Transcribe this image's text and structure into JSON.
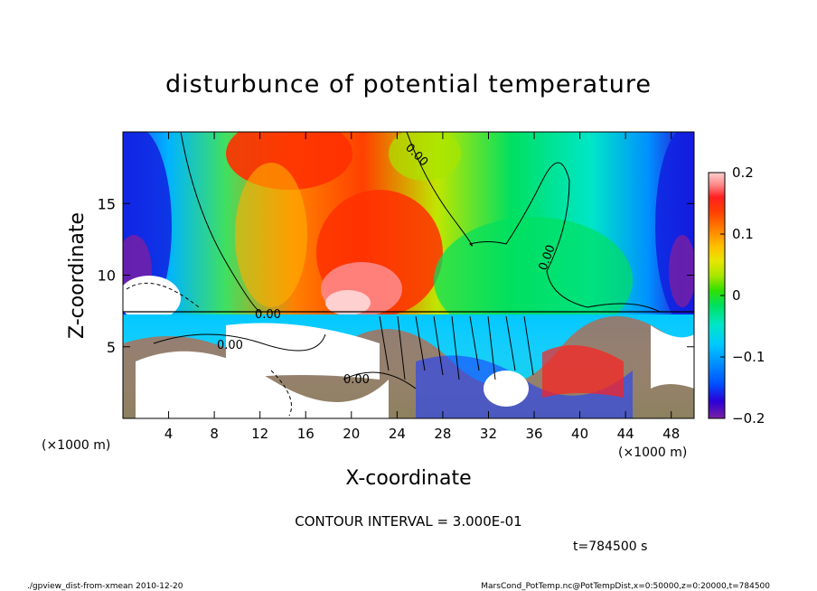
{
  "chart_data": {
    "type": "heatmap",
    "title": "disturbunce of potential temperature",
    "xlabel": "X-coordinate",
    "ylabel": "Z-coordinate",
    "x_unit": "(×1000 m)",
    "x_unit_right": "(×1000 m)",
    "xlim": [
      0,
      50
    ],
    "ylim": [
      0,
      20
    ],
    "x_ticks": [
      4,
      8,
      12,
      16,
      20,
      24,
      28,
      32,
      36,
      40,
      44,
      48
    ],
    "y_ticks": [
      5,
      10,
      15
    ],
    "colorbar": {
      "min": -0.2,
      "max": 0.2,
      "tick_labels": [
        "0.2",
        "0.1",
        "0",
        "−0.1",
        "−0.2"
      ],
      "tick_values": [
        0.2,
        0.1,
        0,
        -0.1,
        -0.2
      ],
      "colors": [
        "#7a1fa2",
        "#2b00d6",
        "#0050ff",
        "#008cff",
        "#00c8ff",
        "#00e6c8",
        "#00e060",
        "#30e000",
        "#a8e600",
        "#e6e600",
        "#ffc000",
        "#ff8000",
        "#ff4000",
        "#ff2020",
        "#ff8888",
        "#ffd0d0"
      ]
    },
    "contour_labels": [
      "0.00",
      "0.00",
      "0.00",
      "0.00",
      "0.00"
    ],
    "contour_interval_text": "CONTOUR INTERVAL = 3.000E-01",
    "time_text": "t=784500 s",
    "footer_left": "./gpview_dist-from-xmean  2010-12-20",
    "footer_right": "MarsCond_PotTemp.nc@PotTempDist,x=0:50000,z=0:20000,t=784500",
    "grid": false,
    "legend": "colorbar-right"
  }
}
